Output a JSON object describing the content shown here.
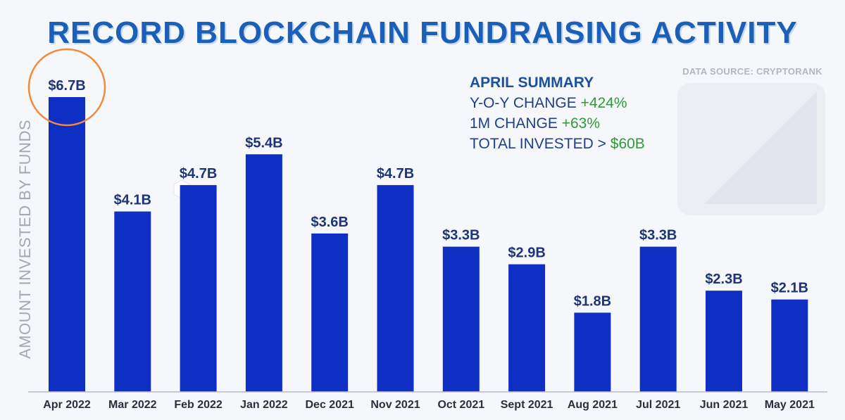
{
  "chart_data": {
    "type": "bar",
    "title": "RECORD BLOCKCHAIN FUNDRAISING ACTIVITY",
    "xlabel": "",
    "ylabel": "AMOUNT INVESTED BY FUNDS",
    "ylim": [
      0,
      7.5
    ],
    "categories": [
      "Apr 2022",
      "Mar 2022",
      "Feb 2022",
      "Jan 2022",
      "Dec 2021",
      "Nov 2021",
      "Oct 2021",
      "Sept 2021",
      "Aug 2021",
      "Jul 2021",
      "Jun 2021",
      "May 2021"
    ],
    "values": [
      6.7,
      4.1,
      4.7,
      5.4,
      3.6,
      4.7,
      3.3,
      2.9,
      1.8,
      3.3,
      2.3,
      2.1
    ],
    "data_labels": [
      "$6.7B",
      "$4.1B",
      "$4.7B",
      "$5.4B",
      "$3.6B",
      "$4.7B",
      "$3.3B",
      "$2.9B",
      "$1.8B",
      "$3.3B",
      "$2.3B",
      "$2.1B"
    ],
    "highlighted_category": "Apr 2022",
    "grid": false
  },
  "source": "DATA SOURCE: CRYPTORANK",
  "summary": {
    "title": "APRIL SUMMARY",
    "yoy_label": "Y-O-Y CHANGE",
    "yoy_value": "+424%",
    "mom_label": "1M CHANGE",
    "mom_value": "+63%",
    "total_label": "TOTAL INVESTED >",
    "total_value": "$60B"
  },
  "colors": {
    "bar": "#0f2fc4",
    "label": "#1c3578",
    "highlight_ring": "#f08a3c",
    "axis": "#b7bcc9"
  }
}
